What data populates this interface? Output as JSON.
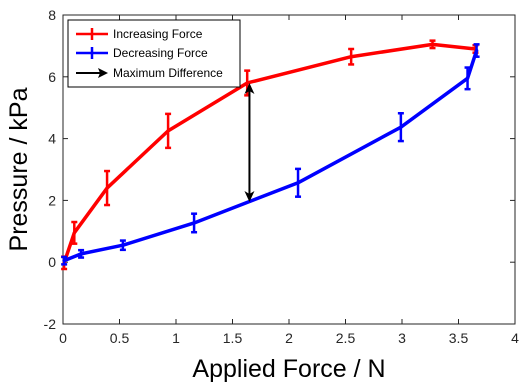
{
  "chart_data": {
    "type": "line",
    "xlabel": "Applied Force / N",
    "ylabel": "Pressure / kPa",
    "xlim": [
      0,
      4
    ],
    "ylim": [
      -2,
      8
    ],
    "xticks": [
      0,
      0.5,
      1,
      1.5,
      2,
      2.5,
      3,
      3.5,
      4
    ],
    "xtick_labels": [
      "0",
      "0.5",
      "1",
      "1.5",
      "2",
      "2.5",
      "3",
      "3.5",
      "4"
    ],
    "yticks": [
      -2,
      0,
      2,
      4,
      6,
      8
    ],
    "ytick_labels": [
      "-2",
      "0",
      "2",
      "4",
      "6",
      "8"
    ],
    "grid": false,
    "legend_position": "top-left",
    "series": [
      {
        "name": "Increasing Force",
        "color": "#ff0000",
        "x": [
          0.01,
          0.1,
          0.39,
          0.93,
          1.63,
          2.55,
          3.27,
          3.65
        ],
        "y": [
          -0.02,
          0.95,
          2.4,
          4.25,
          5.8,
          6.65,
          7.05,
          6.9
        ],
        "err": [
          0.2,
          0.35,
          0.55,
          0.55,
          0.4,
          0.25,
          0.12,
          0.12
        ]
      },
      {
        "name": "Decreasing Force",
        "color": "#0000ff",
        "x": [
          0.01,
          0.16,
          0.53,
          1.16,
          2.08,
          2.99,
          3.58,
          3.66
        ],
        "y": [
          0.05,
          0.27,
          0.55,
          1.27,
          2.57,
          4.37,
          5.95,
          6.85
        ],
        "err": [
          0.12,
          0.12,
          0.15,
          0.3,
          0.45,
          0.45,
          0.35,
          0.2
        ]
      }
    ],
    "annotations": [
      {
        "name": "Maximum Difference",
        "type": "double-arrow",
        "color": "#000000",
        "x": 1.65,
        "y_from": 1.95,
        "y_to": 5.8
      }
    ]
  }
}
